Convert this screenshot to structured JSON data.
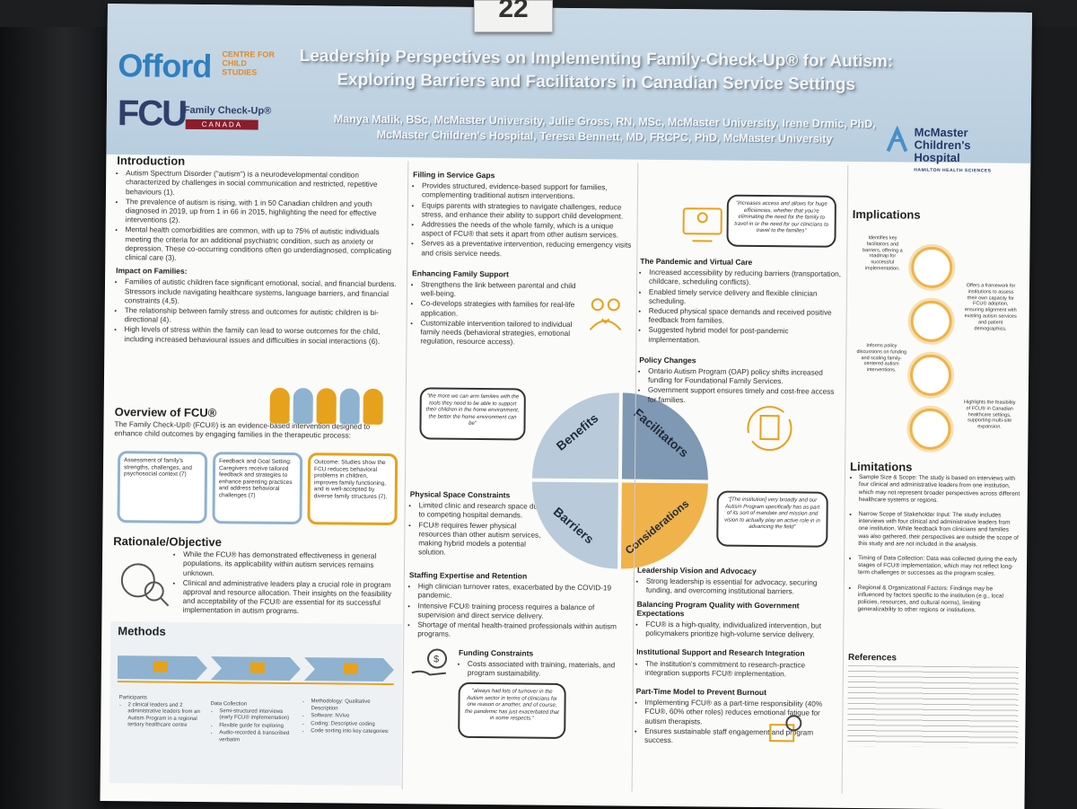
{
  "poster_number": "22",
  "header": {
    "logo_offord": "Offord",
    "logo_offord_sub": "CENTRE FOR CHILD STUDIES",
    "logo_fcu": "FCU",
    "logo_fcu_sub": "Family Check-Up®",
    "logo_fcu_canada": "CANADA",
    "title_line1": "Leadership Perspectives on Implementing Family-Check-Up® for Autism:",
    "title_line2": "Exploring Barriers and Facilitators in Canadian Service Settings",
    "authors": "Manya Malik, BSc, McMaster University, Julie Gross, RN, MSc, McMaster University, Irene Drmic, PhD, McMaster Children's Hospital, Teresa Bennett, MD, FRCPC, PhD, McMaster University",
    "logo_mcmaster_1": "McMaster",
    "logo_mcmaster_2": "Children's",
    "logo_mcmaster_3": "Hospital",
    "logo_mcmaster_4": "HAMILTON HEALTH SCIENCES"
  },
  "introduction": {
    "heading": "Introduction",
    "bullets": [
      "Autism Spectrum Disorder (\"autism\") is a neurodevelopmental condition characterized by challenges in social communication and restricted, repetitive behaviours (1).",
      "The prevalence of autism is rising, with 1 in 50 Canadian children and youth diagnosed in 2019, up from 1 in 66 in 2015, highlighting the need for effective interventions (2).",
      "Mental health comorbidities are common, with up to 75% of autistic individuals meeting the criteria for an additional psychiatric condition, such as anxiety or depression. These co-occurring conditions often go underdiagnosed, complicating clinical care (3)."
    ],
    "families_heading": "Impact on Families:",
    "families_bullets": [
      "Families of autistic children face significant emotional, social, and financial burdens. Stressors include navigating healthcare systems, language barriers, and financial constraints (4,5).",
      "The relationship between family stress and outcomes for autistic children is bi-directional (4).",
      "High levels of stress within the family can lead to worse outcomes for the child, including increased behavioural issues and difficulties in social interactions (6)."
    ]
  },
  "overview": {
    "heading": "Overview of FCU®",
    "text": "The Family Check-Up® (FCU®) is an evidence-based intervention designed to enhance child outcomes by engaging families in the therapeutic process:",
    "box1": "Assessment of family's strengths, challenges, and psychosocial context (7)",
    "box2": "Feedback and Goal Setting: Caregivers receive tailored feedback and strategies to enhance parenting practices and address behavioral challenges (7)",
    "box3": "Outcome: Studies show the FCU reduces behavioral problems in children, improves family functioning, and is well-accepted by diverse family structures (7)."
  },
  "rationale": {
    "heading": "Rationale/Objective",
    "bullets": [
      "While the FCU® has demonstrated effectiveness in general populations, its applicability within autism services remains unknown.",
      "Clinical and administrative leaders play a crucial role in program approval and resource allocation. Their insights on the feasibility and acceptability of the FCU® are essential for its successful implementation in autism programs."
    ]
  },
  "methods": {
    "heading": "Methods",
    "participants_title": "Participants",
    "participants": "2 clinical leaders and 2 administrative leaders from an Autism Program in a regional tertiary healthcare centre",
    "data_title": "Data Collection",
    "data_items": [
      "Semi-structured interviews (early FCU® implementation)",
      "Flexible guide for exploring",
      "Audio-recorded & transcribed verbatim"
    ],
    "method_items": [
      "Methodology: Qualitative Description",
      "Software: NVivo",
      "Coding: Descriptive coding",
      "Code sorting into key categories:"
    ]
  },
  "benefits": {
    "gaps_heading": "Filling in Service Gaps",
    "gaps_bullets": [
      "Provides structured, evidence-based support for families, complementing traditional autism interventions.",
      "Equips parents with strategies to navigate challenges, reduce stress, and enhance their ability to support child development.",
      "Addresses the needs of the whole family, which is a unique aspect of FCU® that sets it apart from other autism services.",
      "Serves as a preventative intervention, reducing emergency visits and crisis service needs."
    ],
    "support_heading": "Enhancing Family Support",
    "support_bullets": [
      "Strengthens the link between parental and child well-being.",
      "Co-develops strategies with families for real-life application.",
      "Customizable intervention tailored to individual family needs (behavioral strategies, emotional regulation, resource access)."
    ],
    "quote": "\"the more we can arm families with the tools they need to be able to support their children in the home environment, the better the home environment can be\""
  },
  "facilitators": {
    "quote": "\"increases access and allows for huge efficiencies, whether that you're eliminating the need for the family to travel in or the need for our clinicians to travel to the families\"",
    "virtual_heading": "The Pandemic and Virtual Care",
    "virtual_bullets": [
      "Increased accessibility by reducing barriers (transportation, childcare, scheduling conflicts).",
      "Enabled timely service delivery and flexible clinician scheduling.",
      "Reduced physical space demands and received positive feedback from families.",
      "Suggested hybrid model for post-pandemic implementation."
    ],
    "policy_heading": "Policy Changes",
    "policy_bullets": [
      "Ontario Autism Program (OAP) policy shifts increased funding for Foundational Family Services.",
      "Government support ensures timely and cost-free access for families."
    ]
  },
  "wheel": {
    "benefits": "Benefits",
    "facilitators": "Facilitators",
    "barriers": "Barriers",
    "considerations": "Considerations"
  },
  "barriers": {
    "space_heading": "Physical Space Constraints",
    "space_bullets": [
      "Limited clinic and research space due to competing hospital demands.",
      "FCU® requires fewer physical resources than other autism services, making hybrid models a potential solution."
    ],
    "staff_heading": "Staffing Expertise and Retention",
    "staff_bullets": [
      "High clinician turnover rates, exacerbated by the COVID-19 pandemic.",
      "Intensive FCU® training process requires a balance of supervision and direct service delivery.",
      "Shortage of mental health-trained professionals within autism programs."
    ],
    "funding_heading": "Funding Constraints",
    "funding_bullets": [
      "Costs associated with training, materials, and program sustainability."
    ],
    "quote": "\"always had lots of turnover in the Autism sector in terms of clinicians for one reason or another, and of course, the pandemic has just exacerbated that in some respects.\""
  },
  "considerations": {
    "quote": "\"[The institution] very broadly and our Autism Program specifically has as part of its sort of mandate and mission and vision to actually play an active role in in advancing the field\"",
    "leadership_heading": "Leadership Vision and Advocacy",
    "leadership_bullets": [
      "Strong leadership is essential for advocacy, securing funding, and overcoming institutional barriers."
    ],
    "balancing_heading": "Balancing Program Quality with Government Expectations",
    "balancing_bullets": [
      "FCU® is a high-quality, individualized intervention, but policymakers prioritize high-volume service delivery."
    ],
    "institutional_heading": "Institutional Support and Research Integration",
    "institutional_bullets": [
      "The institution's commitment to research-practice integration supports FCU® implementation."
    ],
    "parttime_heading": "Part-Time Model to Prevent Burnout",
    "parttime_bullets": [
      "Implementing FCU® as a part-time responsibility (40% FCU®, 60% other roles) reduces emotional fatigue for autism therapists.",
      "Ensures sustainable staff engagement and program success."
    ]
  },
  "implications": {
    "heading": "Implications",
    "items": [
      "Identifies key facilitators and barriers, offering a roadmap for successful implementation.",
      "Offers a framework for institutions to assess their own capacity for FCU® adoption, ensuring alignment with existing autism services and patient demographics.",
      "Informs policy discussions on funding and scaling family-centered autism interventions.",
      "Highlights the feasibility of FCU® in Canadian healthcare settings, supporting multi-site expansion."
    ]
  },
  "limitations": {
    "heading": "Limitations",
    "bullets": [
      "Sample Size & Scope: The study is based on interviews with four clinical and administrative leaders from one institution, which may not represent broader perspectives across different healthcare systems or regions.",
      "Narrow Scope of Stakeholder Input: The study includes interviews with four clinical and administrative leaders from one institution. While feedback from clinicians and families was also gathered, their perspectives are outside the scope of this study and are not included in the analysis.",
      "Timing of Data Collection: Data was collected during the early stages of FCU® implementation, which may not reflect long-term challenges or successes as the program scales.",
      "Regional & Organizational Factors: Findings may be influenced by factors specific to the institution (e.g., local policies, resources, and cultural norms), limiting generalizability to other regions or institutions."
    ]
  },
  "references": {
    "heading": "References"
  },
  "colors": {
    "header_bg": "#bcd1e2",
    "accent_orange": "#e6a21c",
    "accent_blue": "#7f9bb8",
    "navy": "#2f3f6a"
  }
}
